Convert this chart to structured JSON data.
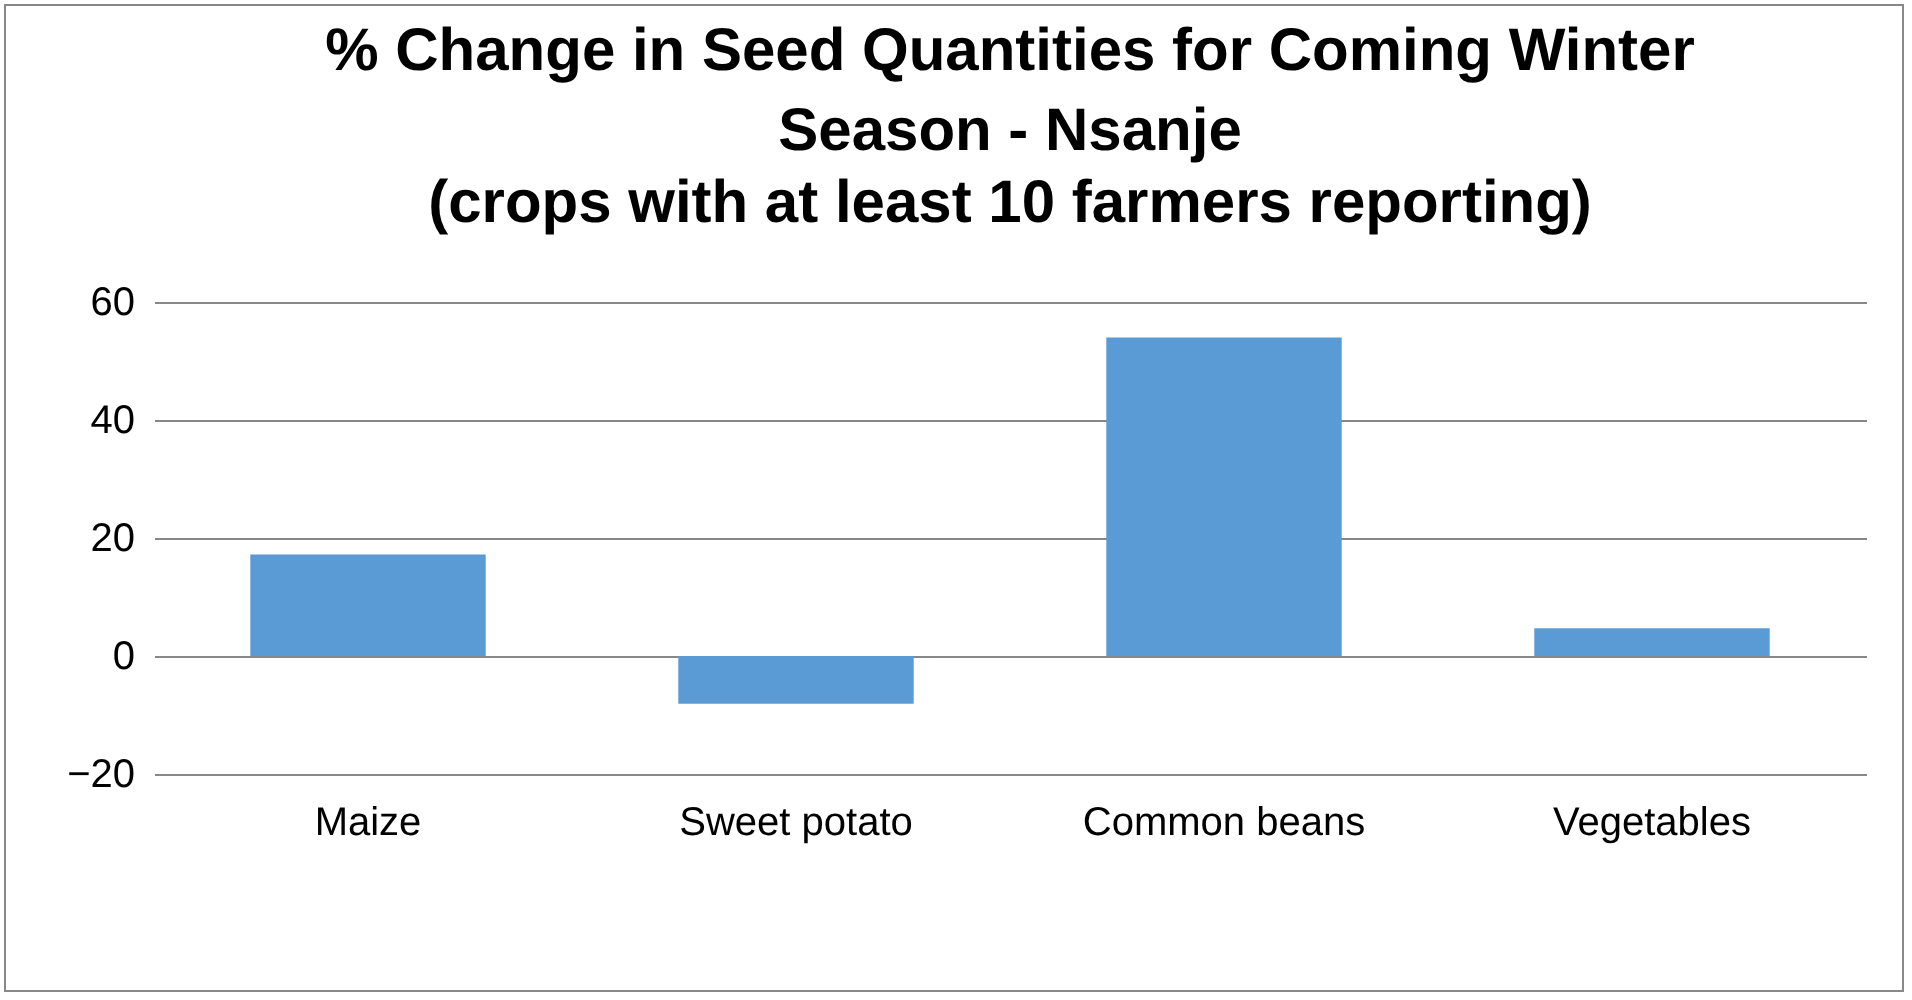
{
  "chart_data": {
    "type": "bar",
    "title": "% Change in Seed Quantities for Coming Winter Season - Nsanje",
    "subtitle": "(crops with at least 10 farmers reporting)",
    "categories": [
      "Maize",
      "Sweet potato",
      "Common beans",
      "Vegetables"
    ],
    "values": [
      17.2,
      -8.1,
      54,
      4.7
    ],
    "color": "#5b9bd5",
    "ylim": [
      -20,
      60
    ],
    "yticks": [
      -20,
      0,
      20,
      40,
      60
    ],
    "grid": "y"
  }
}
